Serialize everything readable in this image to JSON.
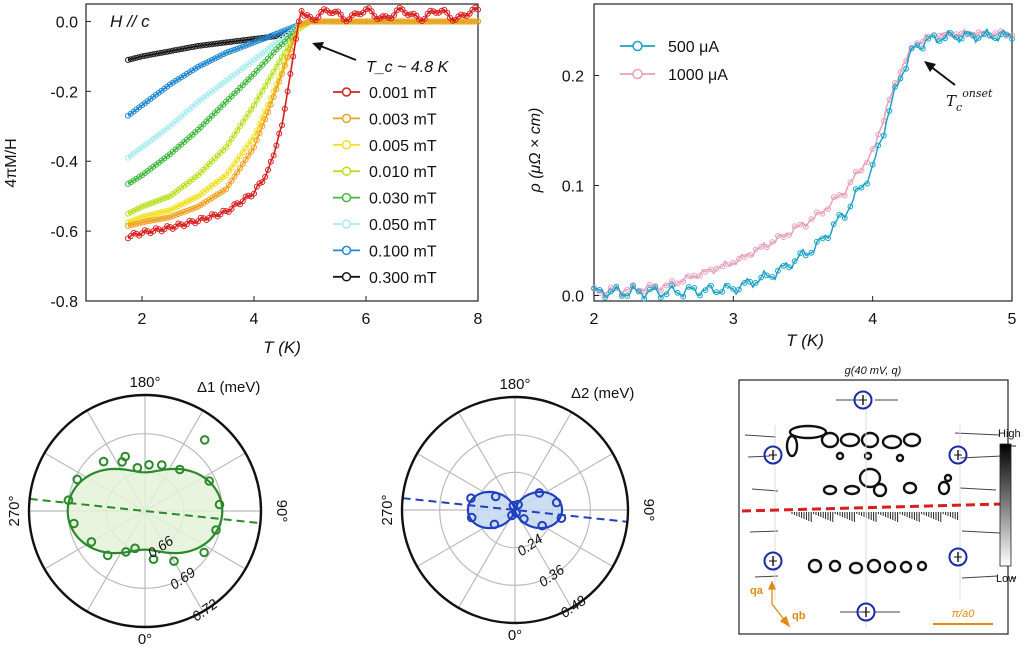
{
  "chart_data": [
    {
      "id": "magnetization",
      "type": "line",
      "title": "H // c",
      "xlabel": "T (K)",
      "ylabel": "4πM/H",
      "xlim": [
        1,
        8
      ],
      "ylim": [
        -0.8,
        0.05
      ],
      "xticks": [
        2,
        4,
        6,
        8
      ],
      "yticks": [
        0.0,
        -0.2,
        -0.4,
        -0.6,
        -0.8
      ],
      "annotation": "T_c ~ 4.8 K",
      "tc_K": 4.8,
      "legend_position": "right",
      "series": [
        {
          "name": "0.001 mT",
          "color": "#d62020",
          "x": [
            1.75,
            2,
            2.5,
            3,
            3.5,
            4,
            4.25,
            4.5,
            4.6,
            4.7,
            4.75,
            4.8,
            4.85,
            4.9,
            5.0,
            8.0
          ],
          "y": [
            -0.615,
            -0.605,
            -0.59,
            -0.57,
            -0.545,
            -0.49,
            -0.43,
            -0.3,
            -0.2,
            -0.1,
            -0.05,
            0.0,
            0.03,
            0.02,
            0.02,
            0.02
          ]
        },
        {
          "name": "0.003 mT",
          "color": "#f0a020",
          "x": [
            1.75,
            2,
            2.5,
            3,
            3.5,
            4,
            4.25,
            4.5,
            4.65,
            4.8,
            5.0,
            8.0
          ],
          "y": [
            -0.585,
            -0.575,
            -0.56,
            -0.53,
            -0.48,
            -0.36,
            -0.26,
            -0.15,
            -0.08,
            -0.01,
            0.0,
            0.0
          ]
        },
        {
          "name": "0.005 mT",
          "color": "#f2e020",
          "x": [
            1.75,
            2,
            2.5,
            3,
            3.5,
            4,
            4.3,
            4.6,
            4.8,
            5.0,
            8.0
          ],
          "y": [
            -0.575,
            -0.56,
            -0.54,
            -0.5,
            -0.44,
            -0.33,
            -0.22,
            -0.1,
            -0.02,
            0.0,
            0.0
          ]
        },
        {
          "name": "0.010 mT",
          "color": "#b8e020",
          "x": [
            1.75,
            2,
            2.5,
            3,
            3.5,
            4,
            4.4,
            4.8,
            5.0,
            8.0
          ],
          "y": [
            -0.55,
            -0.53,
            -0.5,
            -0.44,
            -0.36,
            -0.24,
            -0.13,
            -0.02,
            0.0,
            0.0
          ]
        },
        {
          "name": "0.030 mT",
          "color": "#40b840",
          "x": [
            1.75,
            2,
            2.5,
            3,
            3.5,
            4,
            4.4,
            4.8,
            5.0,
            8.0
          ],
          "y": [
            -0.465,
            -0.44,
            -0.38,
            -0.31,
            -0.23,
            -0.15,
            -0.08,
            -0.02,
            0.0,
            0.0
          ]
        },
        {
          "name": "0.050 mT",
          "color": "#a8ecf0",
          "x": [
            1.75,
            2,
            2.5,
            3,
            3.5,
            4,
            4.4,
            4.8,
            5.0,
            8.0
          ],
          "y": [
            -0.39,
            -0.36,
            -0.3,
            -0.23,
            -0.17,
            -0.11,
            -0.06,
            -0.015,
            0.0,
            0.0
          ]
        },
        {
          "name": "0.100 mT",
          "color": "#2088d0",
          "x": [
            1.75,
            2,
            2.5,
            3,
            3.5,
            4,
            4.4,
            4.8,
            5.0,
            8.0
          ],
          "y": [
            -0.27,
            -0.24,
            -0.18,
            -0.13,
            -0.09,
            -0.06,
            -0.035,
            -0.01,
            0.0,
            0.0
          ]
        },
        {
          "name": "0.300 mT",
          "color": "#151515",
          "x": [
            1.75,
            2,
            2.5,
            3,
            3.5,
            4,
            4.5,
            4.8,
            5.0,
            8.0
          ],
          "y": [
            -0.11,
            -0.1,
            -0.085,
            -0.07,
            -0.06,
            -0.05,
            -0.04,
            -0.02,
            0.0,
            0.0
          ]
        }
      ]
    },
    {
      "id": "resistivity",
      "type": "line",
      "xlabel": "T (K)",
      "ylabel": "ρ (μΩ × cm)",
      "xlim": [
        2,
        5
      ],
      "ylim": [
        -0.005,
        0.265
      ],
      "xticks": [
        2,
        3,
        4,
        5
      ],
      "yticks": [
        0.0,
        0.1,
        0.2
      ],
      "annotation": "T_c^onset",
      "annotation_base": "T",
      "annotation_sub": "c",
      "annotation_sup": "onset",
      "legend_position": "top-left",
      "series": [
        {
          "name": "500 μA",
          "color": "#1aa3c8",
          "x": [
            2.0,
            2.5,
            3.0,
            3.3,
            3.6,
            3.8,
            4.0,
            4.1,
            4.2,
            4.3,
            4.4,
            4.5,
            4.7,
            5.0
          ],
          "y": [
            0.003,
            0.003,
            0.006,
            0.02,
            0.045,
            0.075,
            0.115,
            0.16,
            0.2,
            0.225,
            0.232,
            0.235,
            0.236,
            0.236
          ]
        },
        {
          "name": "1000 μA",
          "color": "#e8a0bc",
          "x": [
            2.0,
            2.5,
            3.0,
            3.3,
            3.6,
            3.8,
            4.0,
            4.1,
            4.2,
            4.3,
            4.4,
            4.5,
            4.7,
            5.0
          ],
          "y": [
            0.003,
            0.008,
            0.03,
            0.05,
            0.072,
            0.095,
            0.13,
            0.17,
            0.205,
            0.228,
            0.235,
            0.237,
            0.238,
            0.238
          ]
        }
      ]
    },
    {
      "id": "gap1_polar",
      "type": "scatter",
      "title": "Δ1 (meV)",
      "angle_labels": [
        "180°",
        "90°",
        "0°",
        "270°"
      ],
      "radial_ticks": [
        0.66,
        0.69,
        0.72
      ],
      "rlim": [
        0.63,
        0.72
      ],
      "color": "#2a8a2a",
      "fill": "#e4f2d8",
      "fit": {
        "a0": 0.675,
        "a2": 0.015,
        "phase_deg": 90
      },
      "points": [
        {
          "theta": 10,
          "r": 0.668
        },
        {
          "theta": 30,
          "r": 0.675
        },
        {
          "theta": 55,
          "r": 0.686
        },
        {
          "theta": 75,
          "r": 0.687
        },
        {
          "theta": 95,
          "r": 0.688
        },
        {
          "theta": 115,
          "r": 0.685
        },
        {
          "theta": 140,
          "r": 0.672
        },
        {
          "theta": 160,
          "r": 0.668
        },
        {
          "theta": 175,
          "r": 0.666
        },
        {
          "theta": 190,
          "r": 0.664
        },
        {
          "theta": 205,
          "r": 0.672
        },
        {
          "theta": 220,
          "r": 0.68
        },
        {
          "theta": 245,
          "r": 0.688
        },
        {
          "theta": 262,
          "r": 0.69
        },
        {
          "theta": 280,
          "r": 0.686
        },
        {
          "theta": 300,
          "r": 0.678
        },
        {
          "theta": 320,
          "r": 0.675
        },
        {
          "theta": 335,
          "r": 0.665
        },
        {
          "theta": 140,
          "r": 0.702
        },
        {
          "theta": 345,
          "r": 0.66
        },
        {
          "theta": 200,
          "r": 0.675
        }
      ]
    },
    {
      "id": "gap2_polar",
      "type": "scatter",
      "title": "Δ2 (meV)",
      "angle_labels": [
        "180°",
        "90°",
        "0°",
        "270°"
      ],
      "radial_ticks": [
        0.24,
        0.36,
        0.48
      ],
      "rlim": [
        0.12,
        0.48
      ],
      "color": "#2040c0",
      "fill": "#c6d8f0",
      "fit": {
        "a0": 0.195,
        "a2": 0.075,
        "phase_deg": 90
      },
      "points": [
        {
          "theta": 60,
          "r": 0.22
        },
        {
          "theta": 80,
          "r": 0.27
        },
        {
          "theta": 100,
          "r": 0.255
        },
        {
          "theta": 125,
          "r": 0.215
        },
        {
          "theta": 150,
          "r": 0.14
        },
        {
          "theta": 200,
          "r": 0.135
        },
        {
          "theta": 235,
          "r": 0.195
        },
        {
          "theta": 255,
          "r": 0.265
        },
        {
          "theta": 280,
          "r": 0.26
        },
        {
          "theta": 305,
          "r": 0.2
        },
        {
          "theta": 330,
          "r": 0.14
        },
        {
          "theta": 20,
          "r": 0.13
        },
        {
          "theta": 45,
          "r": 0.16
        }
      ]
    }
  ],
  "qpi_map": {
    "title": "g(40 mV, q)",
    "colorbar_high": "High",
    "colorbar_low": "Low",
    "axis_qa": "qa",
    "axis_qb": "qb",
    "scale_label": "π/a0",
    "label_color": "#e08a10"
  }
}
